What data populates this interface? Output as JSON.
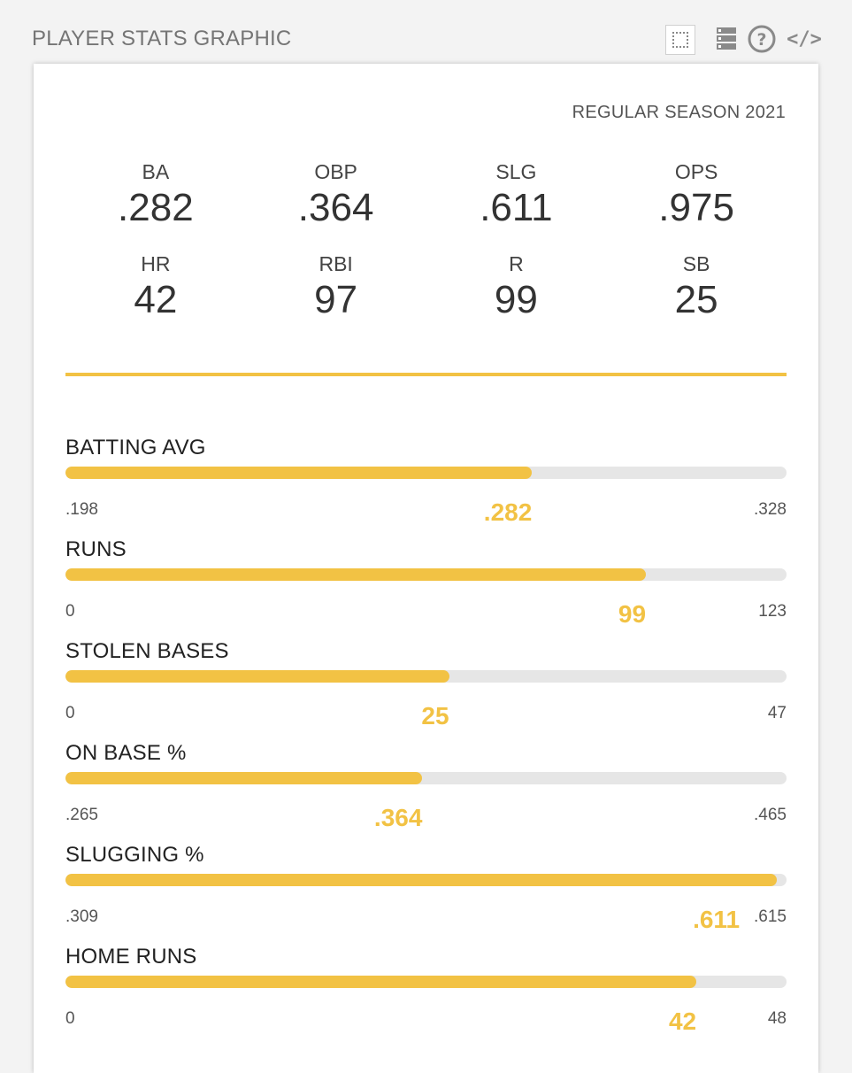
{
  "header": {
    "title": "PLAYER STATS GRAPHIC"
  },
  "toolbar": {
    "icons": [
      "frame-icon",
      "stack-icon",
      "help-icon",
      "code-icon"
    ],
    "code_glyph": "</>",
    "help_glyph": "?"
  },
  "card": {
    "season": "REGULAR SEASON 2021",
    "stats": [
      {
        "label": "BA",
        "value": ".282"
      },
      {
        "label": "OBP",
        "value": ".364"
      },
      {
        "label": "SLG",
        "value": ".611"
      },
      {
        "label": "OPS",
        "value": ".975"
      },
      {
        "label": "HR",
        "value": "42"
      },
      {
        "label": "RBI",
        "value": "97"
      },
      {
        "label": "R",
        "value": "99"
      },
      {
        "label": "SB",
        "value": "25"
      }
    ],
    "bars": [
      {
        "label": "BATTING AVG",
        "min": ".198",
        "max": ".328",
        "current": ".282",
        "fraction": 0.647
      },
      {
        "label": "RUNS",
        "min": "0",
        "max": "123",
        "current": "99",
        "fraction": 0.805
      },
      {
        "label": "STOLEN BASES",
        "min": "0",
        "max": "47",
        "current": "25",
        "fraction": 0.532
      },
      {
        "label": "ON BASE %",
        "min": ".265",
        "max": ".465",
        "current": ".364",
        "fraction": 0.495
      },
      {
        "label": "SLUGGING %",
        "min": ".309",
        "max": ".615",
        "current": ".611",
        "fraction": 0.987
      },
      {
        "label": "HOME RUNS",
        "min": "0",
        "max": "48",
        "current": "42",
        "fraction": 0.875
      }
    ]
  },
  "colors": {
    "accent": "#f2c244",
    "track": "#e6e6e6",
    "background": "#f3f3f3"
  }
}
